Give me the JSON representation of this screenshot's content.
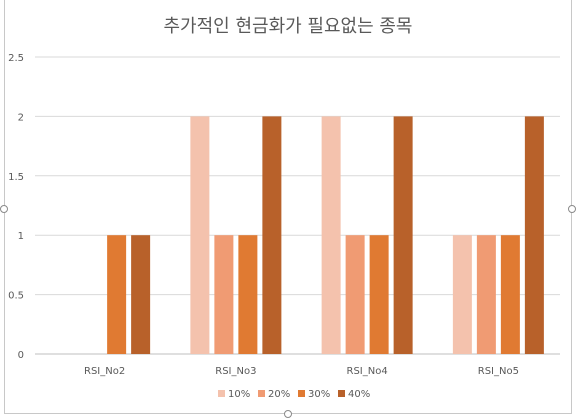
{
  "chart_data": {
    "type": "bar",
    "title": "추가적인 현금화가 필요없는 종목",
    "categories": [
      "RSI_No2",
      "RSI_No3",
      "RSI_No4",
      "RSI_No5"
    ],
    "series": [
      {
        "name": "10%",
        "color": "#f4c2ad",
        "values": [
          0,
          2,
          2,
          1
        ]
      },
      {
        "name": "20%",
        "color": "#f09b73",
        "values": [
          0,
          1,
          1,
          1
        ]
      },
      {
        "name": "30%",
        "color": "#e07a32",
        "values": [
          1,
          1,
          1,
          1
        ]
      },
      {
        "name": "40%",
        "color": "#b8612a",
        "values": [
          1,
          2,
          2,
          2
        ]
      }
    ],
    "ylim": [
      0,
      2.5
    ],
    "yticks": [
      "0",
      "0.5",
      "1",
      "1.5",
      "2",
      "2.5"
    ],
    "ytick_values": [
      0,
      0.5,
      1,
      1.5,
      2,
      2.5
    ],
    "grid": true,
    "legend_position": "bottom"
  }
}
